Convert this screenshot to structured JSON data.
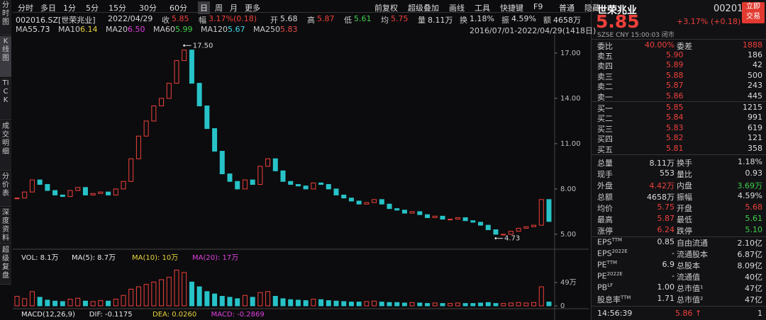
{
  "toolbar": {
    "periods": [
      "分时",
      "多日",
      "1分",
      "5分",
      "15分",
      "30分",
      "60分",
      "日",
      "周",
      "月",
      "更多"
    ],
    "active": 7,
    "tools": [
      "前复权",
      "超级叠加",
      "画线",
      "工具",
      "快捷键",
      "F9",
      "普通",
      "隐藏"
    ]
  },
  "sidebar": [
    "分时图",
    "K线图",
    "TICK",
    "成交明细",
    "分价表",
    "深度资料",
    "超级复盘"
  ],
  "info": {
    "code": "002016.SZ[世荣兆业]",
    "date": "2022/04/29",
    "pairs": [
      [
        "收",
        "5.85"
      ],
      [
        "幅",
        "3.17%(0.18)"
      ],
      [
        "开",
        "5.68"
      ],
      [
        "高",
        "5.87"
      ],
      [
        "低",
        "5.61"
      ],
      [
        "均",
        "5.75"
      ],
      [
        "量",
        "8.11万"
      ],
      [
        "换",
        "1.18%"
      ],
      [
        "振",
        "4.59%"
      ],
      [
        "额",
        "4658万"
      ]
    ]
  },
  "ma": [
    {
      "name": "MA5",
      "value": "5.73",
      "color": "#e8e8e8"
    },
    {
      "name": "MA10",
      "value": "6.14",
      "color": "#e8d43a"
    },
    {
      "name": "MA20",
      "value": "6.50",
      "color": "#e040e0"
    },
    {
      "name": "MA60",
      "value": "5.99",
      "color": "#3fd24a"
    },
    {
      "name": "MA120",
      "value": "5.67",
      "color": "#3fd8e8"
    },
    {
      "name": "MA250",
      "value": "5.83",
      "color": "#e84a4a"
    }
  ],
  "range": "2016/07/01-2022/04/29(1418日)",
  "chart": {
    "type": "candlestick-close",
    "up_color": "#f0403a",
    "down_color": "#27c3c8",
    "ylim": [
      4.34,
      17.7
    ],
    "yticks": [
      {
        "value": 17,
        "label": "17.00"
      },
      {
        "value": 14,
        "label": "14.00"
      },
      {
        "value": 11,
        "label": "11.00"
      },
      {
        "value": 8,
        "label": "8.00"
      },
      {
        "value": 5,
        "label": "5.00"
      }
    ],
    "values": [
      7.4,
      7.8,
      8.6,
      8.3,
      7.9,
      7.6,
      7.5,
      7.9,
      8.1,
      7.6,
      7.7,
      7.8,
      7.6,
      8.0,
      8.5,
      10.0,
      11.5,
      12.5,
      13.5,
      14.0,
      15.0,
      16.5,
      17.2,
      15.0,
      13.5,
      12.0,
      10.5,
      9.0,
      8.5,
      8.0,
      8.6,
      8.3,
      9.5,
      10.0,
      9.2,
      8.5,
      8.3,
      8.2,
      8.0,
      8.4,
      8.3,
      8.0,
      7.6,
      7.4,
      7.2,
      7.0,
      7.1,
      7.3,
      7.0,
      6.7,
      6.6,
      6.4,
      6.5,
      6.3,
      6.1,
      6.2,
      6.0,
      6.0,
      6.1,
      5.9,
      5.8,
      5.6,
      5.3,
      5.0,
      5.0,
      5.2,
      5.4,
      5.5,
      5.6,
      7.3,
      5.85
    ],
    "annotations": [
      {
        "index": 22,
        "value": 17.5,
        "label": "17.50"
      },
      {
        "index": 63,
        "value": 4.73,
        "label": "4.73"
      }
    ]
  },
  "volume": {
    "legend": [
      {
        "text": "VOL: 8.1万",
        "color": "#e8e8e8"
      },
      {
        "text": "MA(5): 8.7万",
        "color": "#e8e8e8"
      },
      {
        "text": "MA(10): 10万",
        "color": "#e8d43a"
      },
      {
        "text": "MA(20): 17万",
        "color": "#e040e0"
      }
    ],
    "ylim": [
      0,
      107
    ],
    "yticks": [
      {
        "value": 49,
        "label": "49万"
      },
      0
    ],
    "values": [
      20,
      15,
      30,
      18,
      12,
      10,
      9,
      14,
      16,
      10,
      9,
      11,
      10,
      14,
      22,
      35,
      40,
      45,
      50,
      55,
      60,
      75,
      70,
      50,
      40,
      30,
      25,
      20,
      18,
      15,
      22,
      18,
      28,
      30,
      20,
      15,
      13,
      12,
      11,
      14,
      13,
      11,
      10,
      9,
      8,
      8,
      9,
      10,
      8,
      7,
      7,
      6,
      7,
      6,
      5,
      6,
      5,
      5,
      6,
      5,
      5,
      6,
      7,
      5,
      5,
      6,
      7,
      6,
      7,
      40,
      8.1
    ]
  },
  "macd": [
    {
      "text": "MACD(12,26,9)",
      "color": "#e8e8e8"
    },
    {
      "text": "DIF: -0.1175",
      "color": "#e8e8e8"
    },
    {
      "text": "DEA: 0.0260",
      "color": "#e8d43a"
    },
    {
      "text": "MACD: -0.2869",
      "color": "#e040e0"
    }
  ],
  "quote": {
    "name": "世荣兆业",
    "code": "002016",
    "button": [
      "立即",
      "交易"
    ],
    "price": "5.85",
    "change": "+3.17%",
    "change_abs": "(+0.18)",
    "status": "SZSE  CNY  15:00:03 闭市",
    "ratio": [
      "委比",
      "40.00%",
      "委差",
      "1888"
    ],
    "book": [
      [
        "卖五",
        "5.90",
        "186"
      ],
      [
        "卖四",
        "5.89",
        "42"
      ],
      [
        "卖三",
        "5.88",
        "500"
      ],
      [
        "卖二",
        "5.87",
        "243"
      ],
      [
        "卖一",
        "5.86",
        "445"
      ],
      [
        "买一",
        "5.85",
        "1215"
      ],
      [
        "买二",
        "5.84",
        "991"
      ],
      [
        "买三",
        "5.83",
        "619"
      ],
      [
        "买四",
        "5.82",
        "121"
      ],
      [
        "买五",
        "5.81",
        "358"
      ]
    ],
    "stats": [
      [
        "总量",
        "8.11万",
        "换手",
        "1.18%"
      ],
      [
        "现手",
        "553",
        "量比",
        "0.93"
      ],
      [
        "外盘",
        {
          "t": "4.42万",
          "c": "#f0403a"
        },
        "内盘",
        {
          "t": "3.69万",
          "c": "#3fd24a"
        }
      ],
      [
        "总额",
        "4658万",
        "振幅",
        "4.59%"
      ],
      [
        "均价",
        {
          "t": "5.75",
          "c": "#f0403a"
        },
        "开盘",
        {
          "t": "5.68",
          "c": "#f0403a"
        }
      ],
      [
        "最高",
        {
          "t": "5.87",
          "c": "#f0403a"
        },
        "最低",
        {
          "t": "5.61",
          "c": "#3fd24a"
        }
      ],
      [
        "涨停",
        {
          "t": "6.24",
          "c": "#f0403a"
        },
        "跌停",
        {
          "t": "5.10",
          "c": "#3fd24a"
        }
      ]
    ],
    "fundamentals": [
      [
        {
          "t": "EPS",
          "s": "TTM"
        },
        "0.85",
        "自由流通",
        "2.10亿"
      ],
      [
        {
          "t": "EPS",
          "s": "2022E"
        },
        "-",
        "流通股本",
        "6.87亿"
      ],
      [
        {
          "t": "PE",
          "s": "TTM"
        },
        "6.9",
        "总股本",
        "8.09亿"
      ],
      [
        {
          "t": "PE",
          "s": "2022E"
        },
        "-",
        "流通值",
        "40亿"
      ],
      [
        {
          "t": "PB",
          "s": "LF"
        },
        "1.00",
        "总市值¹",
        "47亿"
      ],
      [
        {
          "t": "股息率",
          "s": "TTM"
        },
        "1.71",
        "总市值²",
        "47亿"
      ]
    ],
    "tick": [
      "14:56:39",
      "5.86 ↑",
      "1"
    ]
  }
}
